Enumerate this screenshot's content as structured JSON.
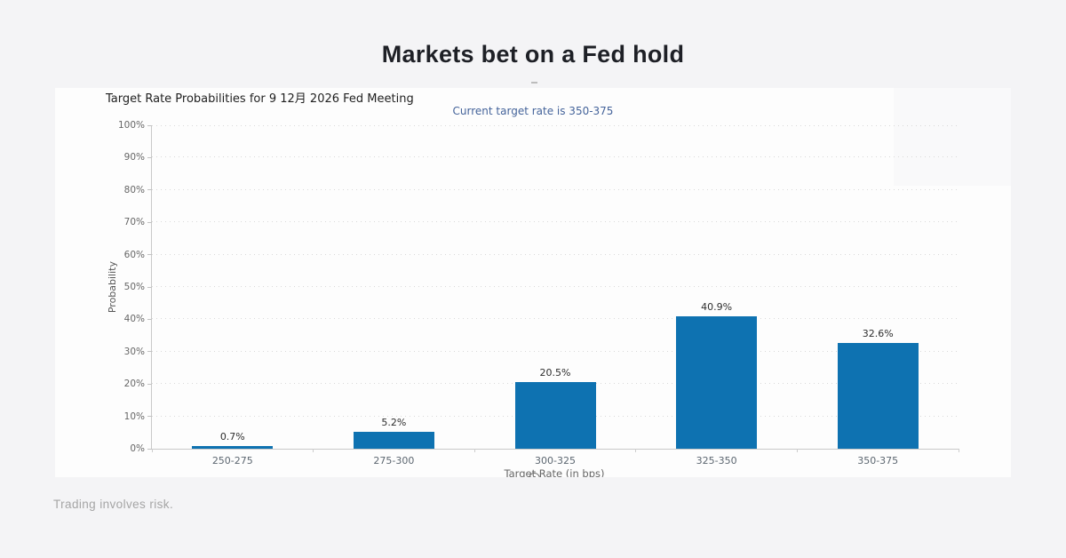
{
  "page": {
    "title": "Markets bet on a Fed hold",
    "footer": "Trading involves risk."
  },
  "chart_data": {
    "type": "bar",
    "title": "Target Rate Probabilities for 9 12月 2026 Fed Meeting",
    "subtitle": "Current target rate is 350-375",
    "categories": [
      "250-275",
      "275-300",
      "300-325",
      "325-350",
      "350-375"
    ],
    "values": [
      0.7,
      5.2,
      20.5,
      40.9,
      32.6
    ],
    "value_labels": [
      "0.7%",
      "5.2%",
      "20.5%",
      "40.9%",
      "32.6%"
    ],
    "xlabel": "Target Rate (in bps)",
    "ylabel": "Probability",
    "ylim": [
      0,
      100
    ],
    "ytick_step": 10,
    "ytick_labels": [
      "0%",
      "10%",
      "20%",
      "30%",
      "40%",
      "50%",
      "60%",
      "70%",
      "80%",
      "90%",
      "100%"
    ],
    "grid": "dotted-horizontal",
    "legend": "none",
    "bar_color": "#0e72b1",
    "subtitle_color": "#44639a"
  }
}
